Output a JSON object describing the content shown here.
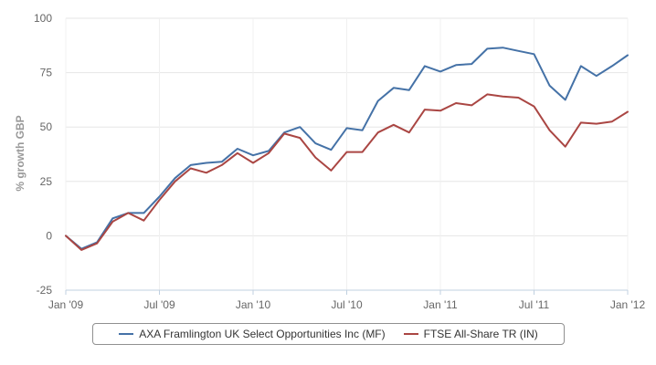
{
  "chart_data": {
    "type": "line",
    "title": "",
    "xlabel": "",
    "ylabel": "% growth GBP",
    "ylim": [
      -25,
      100
    ],
    "yticks": [
      -25,
      0,
      25,
      50,
      75,
      100
    ],
    "xlim": [
      "2009-01",
      "2012-01"
    ],
    "xticks": [
      {
        "value": "2009-01",
        "label": "Jan '09"
      },
      {
        "value": "2009-07",
        "label": "Jul '09"
      },
      {
        "value": "2010-01",
        "label": "Jan '10"
      },
      {
        "value": "2010-07",
        "label": "Jul '10"
      },
      {
        "value": "2011-01",
        "label": "Jan '11"
      },
      {
        "value": "2011-07",
        "label": "Jul '11"
      },
      {
        "value": "2012-01",
        "label": "Jan '12"
      }
    ],
    "grid": true,
    "legend_position": "bottom",
    "x": [
      "2009-01",
      "2009-02",
      "2009-03",
      "2009-04",
      "2009-05",
      "2009-06",
      "2009-07",
      "2009-08",
      "2009-09",
      "2009-10",
      "2009-11",
      "2009-12",
      "2010-01",
      "2010-02",
      "2010-03",
      "2010-04",
      "2010-05",
      "2010-06",
      "2010-07",
      "2010-08",
      "2010-09",
      "2010-10",
      "2010-11",
      "2010-12",
      "2011-01",
      "2011-02",
      "2011-03",
      "2011-04",
      "2011-05",
      "2011-06",
      "2011-07",
      "2011-08",
      "2011-09",
      "2011-10",
      "2011-11",
      "2011-12",
      "2012-01"
    ],
    "series": [
      {
        "name": "AXA Framlington UK Select Opportunities Inc (MF)",
        "color": "#4572a7",
        "values": [
          0,
          -6,
          -3,
          8,
          10.5,
          10.5,
          18,
          26.5,
          32.5,
          33.5,
          34,
          40,
          37,
          39,
          47.5,
          50,
          42.5,
          39.5,
          49.5,
          48.5,
          62,
          68,
          67,
          78,
          75.5,
          78.5,
          79,
          86,
          86.5,
          85,
          83.5,
          69,
          62.5,
          78,
          73.5,
          78,
          83
        ]
      },
      {
        "name": "FTSE All-Share TR (IN)",
        "color": "#aa4643",
        "values": [
          0,
          -6.5,
          -3.5,
          6.5,
          10.5,
          7,
          16.5,
          25,
          31,
          29,
          32.5,
          38,
          33.5,
          38,
          47,
          45,
          36,
          30,
          38.5,
          38.5,
          47.5,
          51,
          47.5,
          58,
          57.5,
          61,
          60,
          65,
          64,
          63.5,
          59.5,
          48.5,
          41,
          52,
          51.5,
          52.5,
          57
        ]
      }
    ]
  }
}
